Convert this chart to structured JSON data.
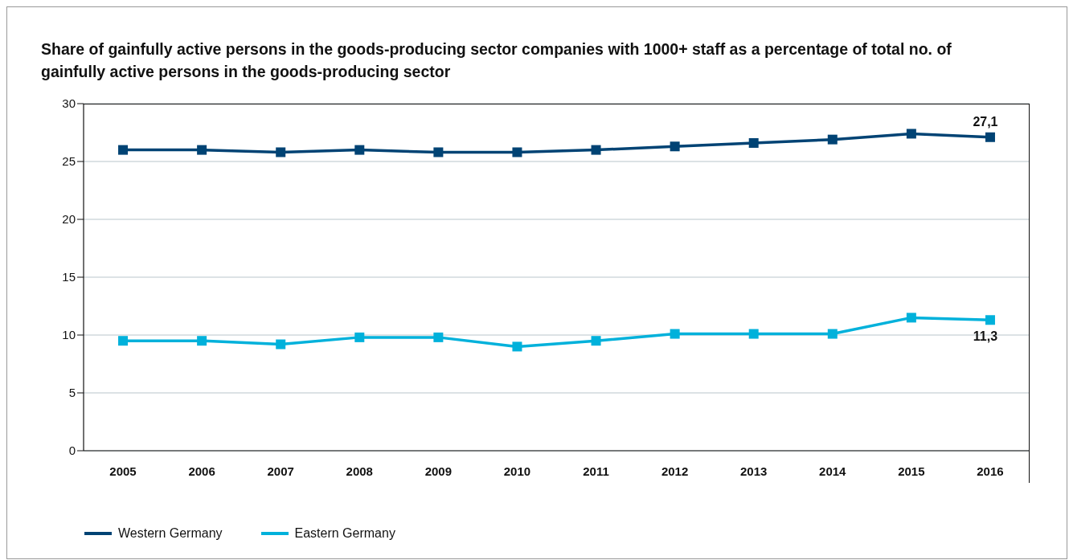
{
  "chart_data": {
    "type": "line",
    "title": "Share of gainfully active persons in the goods-producing sector companies with 1000+ staff as a percentage of total no. of gainfully active persons in the goods-producing sector",
    "categories": [
      "2005",
      "2006",
      "2007",
      "2008",
      "2009",
      "2010",
      "2011",
      "2012",
      "2013",
      "2014",
      "2015",
      "2016"
    ],
    "series": [
      {
        "name": "Western Germany",
        "color": "#004374",
        "values": [
          26.0,
          26.0,
          25.8,
          26.0,
          25.8,
          25.8,
          26.0,
          26.3,
          26.6,
          26.9,
          27.4,
          27.1
        ],
        "value_labels": [
          null,
          null,
          null,
          null,
          null,
          null,
          null,
          null,
          null,
          null,
          null,
          "27,1"
        ]
      },
      {
        "name": "Eastern Germany",
        "color": "#00b1db",
        "values": [
          9.5,
          9.5,
          9.2,
          9.8,
          9.8,
          9.0,
          9.5,
          10.1,
          10.1,
          10.1,
          11.5,
          11.3
        ],
        "value_labels": [
          null,
          null,
          null,
          null,
          null,
          null,
          null,
          null,
          null,
          null,
          null,
          "11,3"
        ]
      }
    ],
    "ylim": [
      0,
      30
    ],
    "yticks": [
      0,
      5,
      10,
      15,
      20,
      25,
      30
    ],
    "grid": "y",
    "legend": "bottom left",
    "marker": "square",
    "line_style": "solid"
  }
}
